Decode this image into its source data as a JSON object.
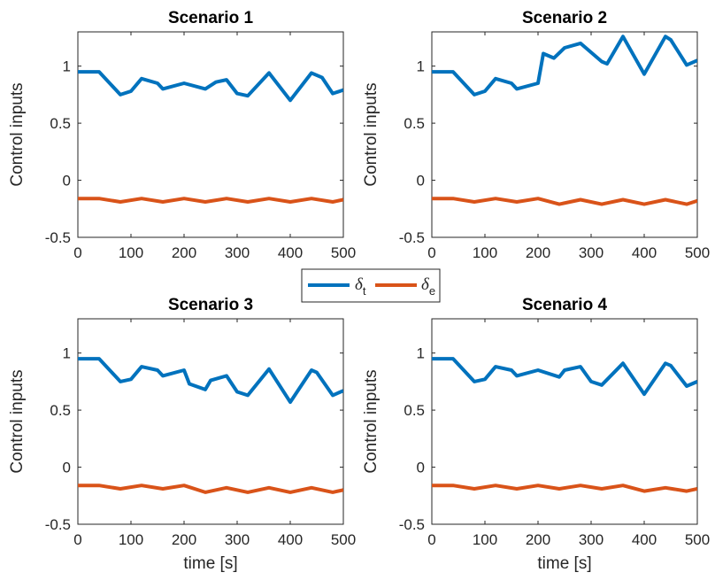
{
  "chart_data": [
    {
      "type": "line",
      "title": "Scenario 1",
      "xlabel": "",
      "ylabel": "Control inputs",
      "xlim": [
        0,
        500
      ],
      "ylim": [
        -0.5,
        1.3
      ],
      "xticks": [
        "0",
        "100",
        "200",
        "300",
        "400",
        "500"
      ],
      "yticks": [
        "-0.5",
        "0",
        "0.5",
        "1"
      ],
      "series": [
        {
          "name": "δt",
          "color": "#0072BD",
          "x": [
            0,
            40,
            80,
            100,
            120,
            150,
            160,
            200,
            240,
            260,
            280,
            300,
            320,
            360,
            400,
            440,
            460,
            480,
            500
          ],
          "y": [
            0.95,
            0.95,
            0.75,
            0.78,
            0.89,
            0.85,
            0.8,
            0.85,
            0.8,
            0.86,
            0.88,
            0.76,
            0.74,
            0.94,
            0.7,
            0.94,
            0.9,
            0.76,
            0.79
          ]
        },
        {
          "name": "δe",
          "color": "#D95319",
          "x": [
            0,
            40,
            80,
            120,
            160,
            200,
            240,
            280,
            320,
            360,
            400,
            440,
            480,
            500
          ],
          "y": [
            -0.16,
            -0.16,
            -0.19,
            -0.16,
            -0.19,
            -0.16,
            -0.19,
            -0.16,
            -0.19,
            -0.16,
            -0.19,
            -0.16,
            -0.19,
            -0.17
          ]
        }
      ]
    },
    {
      "type": "line",
      "title": "Scenario 2",
      "xlabel": "",
      "ylabel": "Control inputs",
      "xlim": [
        0,
        500
      ],
      "ylim": [
        -0.5,
        1.3
      ],
      "xticks": [
        "0",
        "100",
        "200",
        "300",
        "400",
        "500"
      ],
      "yticks": [
        "-0.5",
        "0",
        "0.5",
        "1"
      ],
      "series": [
        {
          "name": "δt",
          "color": "#0072BD",
          "x": [
            0,
            40,
            80,
            100,
            120,
            150,
            160,
            200,
            210,
            230,
            250,
            280,
            320,
            330,
            360,
            400,
            440,
            450,
            480,
            500
          ],
          "y": [
            0.95,
            0.95,
            0.75,
            0.78,
            0.89,
            0.85,
            0.8,
            0.85,
            1.11,
            1.07,
            1.16,
            1.2,
            1.04,
            1.02,
            1.26,
            0.93,
            1.26,
            1.23,
            1.01,
            1.05
          ]
        },
        {
          "name": "δe",
          "color": "#D95319",
          "x": [
            0,
            40,
            80,
            120,
            160,
            200,
            240,
            280,
            320,
            360,
            400,
            440,
            480,
            500
          ],
          "y": [
            -0.16,
            -0.16,
            -0.19,
            -0.16,
            -0.19,
            -0.16,
            -0.21,
            -0.17,
            -0.21,
            -0.17,
            -0.21,
            -0.17,
            -0.21,
            -0.18
          ]
        }
      ]
    },
    {
      "type": "line",
      "title": "Scenario 3",
      "xlabel": "time [s]",
      "ylabel": "Control inputs",
      "xlim": [
        0,
        500
      ],
      "ylim": [
        -0.5,
        1.3
      ],
      "xticks": [
        "0",
        "100",
        "200",
        "300",
        "400",
        "500"
      ],
      "yticks": [
        "-0.5",
        "0",
        "0.5",
        "1"
      ],
      "series": [
        {
          "name": "δt",
          "color": "#0072BD",
          "x": [
            0,
            40,
            80,
            100,
            120,
            150,
            160,
            200,
            210,
            240,
            250,
            280,
            300,
            320,
            360,
            400,
            440,
            450,
            480,
            500
          ],
          "y": [
            0.95,
            0.95,
            0.75,
            0.77,
            0.88,
            0.85,
            0.8,
            0.85,
            0.73,
            0.68,
            0.76,
            0.8,
            0.66,
            0.63,
            0.86,
            0.57,
            0.85,
            0.83,
            0.63,
            0.67
          ]
        },
        {
          "name": "δe",
          "color": "#D95319",
          "x": [
            0,
            40,
            80,
            120,
            160,
            200,
            240,
            280,
            320,
            360,
            400,
            440,
            480,
            500
          ],
          "y": [
            -0.16,
            -0.16,
            -0.19,
            -0.16,
            -0.19,
            -0.16,
            -0.22,
            -0.18,
            -0.22,
            -0.18,
            -0.22,
            -0.18,
            -0.22,
            -0.2
          ]
        }
      ]
    },
    {
      "type": "line",
      "title": "Scenario 4",
      "xlabel": "time [s]",
      "ylabel": "Control inputs",
      "xlim": [
        0,
        500
      ],
      "ylim": [
        -0.5,
        1.3
      ],
      "xticks": [
        "0",
        "100",
        "200",
        "300",
        "400",
        "500"
      ],
      "yticks": [
        "-0.5",
        "0",
        "0.5",
        "1"
      ],
      "series": [
        {
          "name": "δt",
          "color": "#0072BD",
          "x": [
            0,
            40,
            80,
            100,
            120,
            150,
            160,
            200,
            240,
            250,
            280,
            300,
            320,
            360,
            400,
            440,
            450,
            480,
            500
          ],
          "y": [
            0.95,
            0.95,
            0.75,
            0.77,
            0.88,
            0.85,
            0.8,
            0.85,
            0.79,
            0.85,
            0.88,
            0.75,
            0.72,
            0.91,
            0.64,
            0.91,
            0.89,
            0.71,
            0.75
          ]
        },
        {
          "name": "δe",
          "color": "#D95319",
          "x": [
            0,
            40,
            80,
            120,
            160,
            200,
            240,
            280,
            320,
            360,
            400,
            440,
            480,
            500
          ],
          "y": [
            -0.16,
            -0.16,
            -0.19,
            -0.16,
            -0.19,
            -0.16,
            -0.19,
            -0.16,
            -0.19,
            -0.16,
            -0.21,
            -0.18,
            -0.21,
            -0.19
          ]
        }
      ]
    }
  ],
  "legend": {
    "position": "center",
    "items": [
      {
        "symbol": "δ",
        "subscript": "t",
        "color": "#0072BD"
      },
      {
        "symbol": "δ",
        "subscript": "e",
        "color": "#D95319"
      }
    ]
  }
}
